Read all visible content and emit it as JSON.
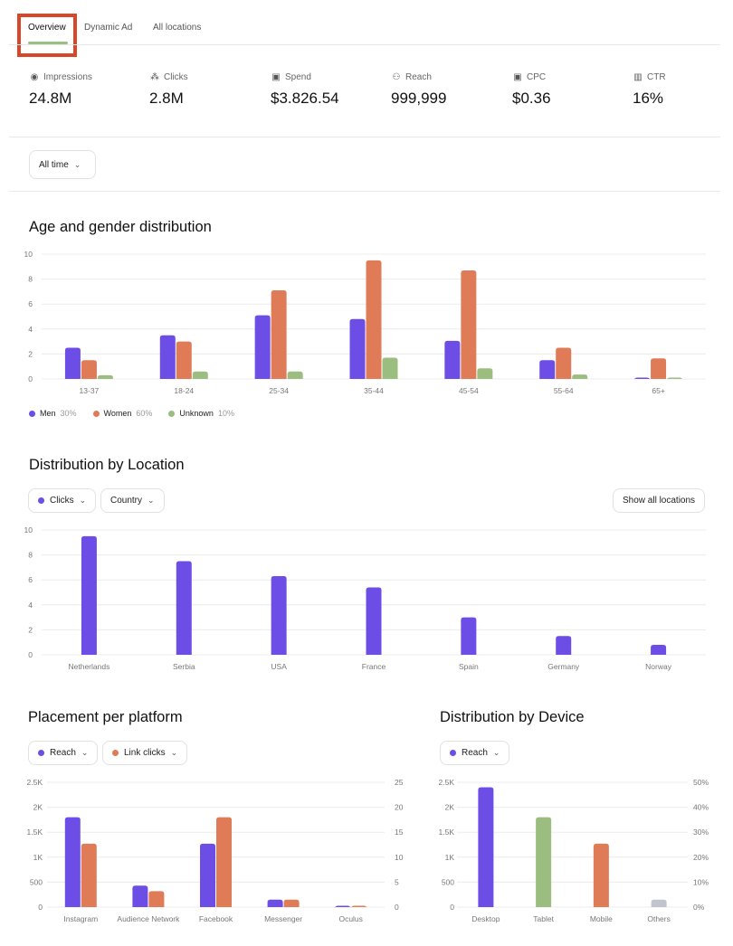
{
  "tabs": [
    {
      "label": "Overview",
      "active": true
    },
    {
      "label": "Dynamic Ad"
    },
    {
      "label": "All locations"
    }
  ],
  "stats": [
    {
      "icon": "eye-icon",
      "glyph": "◉",
      "label": "Impressions",
      "value": "24.8M"
    },
    {
      "icon": "cursor-click-icon",
      "glyph": "⁂",
      "label": "Clicks",
      "value": "2.8M"
    },
    {
      "icon": "money-icon",
      "glyph": "▣",
      "label": "Spend",
      "value": "$3.826.54"
    },
    {
      "icon": "user-check-icon",
      "glyph": "⚇",
      "label": "Reach",
      "value": "999,999"
    },
    {
      "icon": "coin-icon",
      "glyph": "▣",
      "label": "CPC",
      "value": "$0.36"
    },
    {
      "icon": "chart-icon",
      "glyph": "▥",
      "label": "CTR",
      "value": "16%"
    }
  ],
  "filter": {
    "label": "All time"
  },
  "colors": {
    "men": "#6c4de6",
    "women": "#e07b57",
    "unknown": "#9bbd80",
    "others": "#c0c4cc",
    "accent": "#9bc084"
  },
  "age": {
    "title": "Age and gender distribution",
    "legend": [
      {
        "label": "Men",
        "pct": "30%",
        "color": "#6c4de6"
      },
      {
        "label": "Women",
        "pct": "60%",
        "color": "#e07b57"
      },
      {
        "label": "Unknown",
        "pct": "10%",
        "color": "#9bbd80"
      }
    ]
  },
  "location": {
    "title": "Distribution by Location",
    "metric": "Clicks",
    "scope": "Country",
    "show_all": "Show all locations"
  },
  "platform": {
    "title": "Placement per platform",
    "metric1": "Reach",
    "metric2": "Link clicks"
  },
  "device": {
    "title": "Distribution by Device",
    "metric": "Reach"
  },
  "chart_data": [
    {
      "type": "bar",
      "id": "age",
      "categories": [
        "13-37",
        "18-24",
        "25-34",
        "35-44",
        "45-54",
        "55-64",
        "65+"
      ],
      "ylim": [
        0,
        10
      ],
      "yticks": [
        "0",
        "2",
        "4",
        "6",
        "8",
        "10"
      ],
      "grid": true,
      "legend": "bottom-left",
      "series": [
        {
          "name": "Men",
          "color": "#6c4de6",
          "values": [
            2.5,
            3.5,
            5.1,
            4.8,
            3.05,
            1.5,
            0.05
          ]
        },
        {
          "name": "Women",
          "color": "#e07b57",
          "values": [
            1.5,
            3.0,
            7.1,
            9.5,
            8.7,
            2.5,
            1.65
          ]
        },
        {
          "name": "Unknown",
          "color": "#9bbd80",
          "values": [
            0.3,
            0.6,
            0.6,
            1.7,
            0.85,
            0.35,
            0.05
          ]
        }
      ]
    },
    {
      "type": "bar",
      "id": "location",
      "categories": [
        "Netherlands",
        "Serbia",
        "USA",
        "France",
        "Spain",
        "Germany",
        "Norway"
      ],
      "ylim": [
        0,
        10
      ],
      "yticks": [
        "0",
        "2",
        "4",
        "6",
        "8",
        "10"
      ],
      "grid": true,
      "series": [
        {
          "name": "Clicks",
          "color": "#6c4de6",
          "values": [
            9.5,
            7.5,
            6.3,
            5.4,
            3.0,
            1.5,
            0.8
          ]
        }
      ]
    },
    {
      "type": "bar",
      "id": "platform",
      "categories": [
        "Instagram",
        "Audience Network",
        "Facebook",
        "Messenger",
        "Oculus"
      ],
      "ylim": [
        0,
        2500
      ],
      "yticks": [
        "0",
        "500",
        "1K",
        "1.5K",
        "2K",
        "2.5K"
      ],
      "y2lim": [
        0,
        25
      ],
      "y2ticks": [
        "0",
        "5",
        "10",
        "15",
        "20",
        "25"
      ],
      "grid": true,
      "series": [
        {
          "name": "Reach",
          "color": "#6c4de6",
          "axis": "left",
          "values": [
            1800,
            430,
            1270,
            150,
            10
          ]
        },
        {
          "name": "Link clicks",
          "color": "#e07b57",
          "axis": "right",
          "values": [
            12.7,
            3.2,
            18,
            1.5,
            0.1
          ]
        }
      ]
    },
    {
      "type": "bar",
      "id": "device",
      "categories": [
        "Desktop",
        "Tablet",
        "Mobile",
        "Others"
      ],
      "ylim": [
        0,
        2500
      ],
      "yticks": [
        "0",
        "500",
        "1K",
        "1.5K",
        "2K",
        "2.5K"
      ],
      "y2ticks": [
        "0%",
        "10%",
        "20%",
        "30%",
        "40%",
        "50%"
      ],
      "grid": true,
      "series": [
        {
          "name": "Reach",
          "axis": "left",
          "values": [
            2400,
            1800,
            1270,
            150
          ],
          "colors": [
            "#6c4de6",
            "#9bbd80",
            "#e07b57",
            "#c0c4cc"
          ]
        }
      ]
    }
  ]
}
